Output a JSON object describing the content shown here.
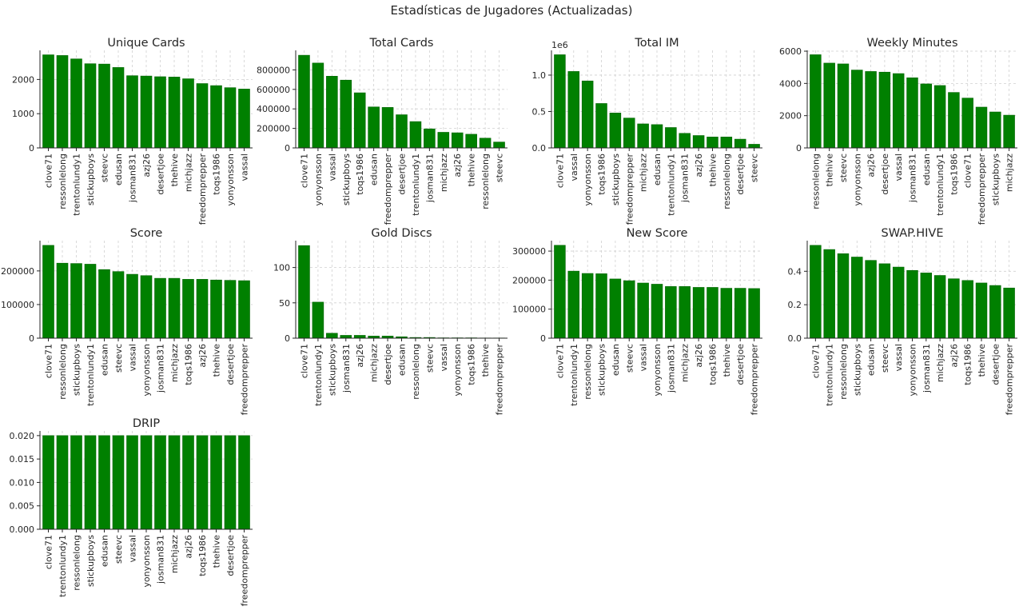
{
  "figure_title": "Estadísticas de Jugadores (Actualizadas)",
  "colors": {
    "bar": "#008000",
    "bar_edge": "#006400",
    "axis": "#262626",
    "grid": "#d0d0d0"
  },
  "chart_data": [
    {
      "type": "bar",
      "title": "Unique Cards",
      "categories": [
        "clove71",
        "ressonlelong",
        "trentonlundy1",
        "stickupboys",
        "steevc",
        "edusan",
        "josman831",
        "azj26",
        "desertjoe",
        "thehive",
        "michjazz",
        "freedomprepper",
        "toqs1986",
        "yonyonsson",
        "vassal"
      ],
      "values": [
        2720,
        2700,
        2600,
        2460,
        2450,
        2350,
        2110,
        2100,
        2080,
        2070,
        2020,
        1880,
        1820,
        1760,
        1720
      ],
      "ylim": [
        0,
        2850
      ],
      "yticks": [
        0,
        1000,
        2000
      ],
      "ytick_labels": [
        "0",
        "1000",
        "2000"
      ]
    },
    {
      "type": "bar",
      "title": "Total Cards",
      "categories": [
        "clove71",
        "yonyonsson",
        "vassal",
        "stickupboys",
        "toqs1986",
        "edusan",
        "freedomprepper",
        "desertjoe",
        "trentonlundy1",
        "josman831",
        "michjazz",
        "azj26",
        "thehive",
        "ressonlelong",
        "steevc"
      ],
      "values": [
        950000,
        870000,
        735000,
        695000,
        565000,
        420000,
        415000,
        340000,
        270000,
        195000,
        160000,
        155000,
        140000,
        100000,
        60000
      ],
      "ylim": [
        0,
        1000000
      ],
      "yticks": [
        0,
        200000,
        400000,
        600000,
        800000
      ],
      "ytick_labels": [
        "0",
        "200000",
        "400000",
        "600000",
        "800000"
      ]
    },
    {
      "type": "bar",
      "title": "Total IM",
      "offset_text": "1e6",
      "categories": [
        "clove71",
        "vassal",
        "yonyonsson",
        "toqs1986",
        "stickupboys",
        "freedomprepper",
        "michjazz",
        "edusan",
        "trentonlundy1",
        "josman831",
        "azj26",
        "thehive",
        "ressonlelong",
        "desertjoe",
        "steevc"
      ],
      "values": [
        1.28,
        1.05,
        0.92,
        0.61,
        0.48,
        0.41,
        0.33,
        0.32,
        0.28,
        0.2,
        0.17,
        0.15,
        0.15,
        0.12,
        0.05
      ],
      "ylim": [
        0,
        1.34
      ],
      "yticks": [
        0,
        0.5,
        1.0
      ],
      "ytick_labels": [
        "0.0",
        "0.5",
        "1.0"
      ]
    },
    {
      "type": "bar",
      "title": "Weekly Minutes",
      "categories": [
        "ressonlelong",
        "thehive",
        "steevc",
        "yonyonsson",
        "azj26",
        "desertjoe",
        "vassal",
        "josman831",
        "edusan",
        "trentonlundy1",
        "toqs1986",
        "clove71",
        "freedomprepper",
        "stickupboys",
        "michjazz"
      ],
      "values": [
        5780,
        5260,
        5210,
        4830,
        4740,
        4700,
        4610,
        4350,
        3970,
        3870,
        3440,
        3090,
        2530,
        2230,
        2030
      ],
      "ylim": [
        0,
        6050
      ],
      "yticks": [
        0,
        2000,
        4000,
        6000
      ],
      "ytick_labels": [
        "0",
        "2000",
        "4000",
        "6000"
      ]
    },
    {
      "type": "bar",
      "title": "Score",
      "categories": [
        "clove71",
        "ressonlelong",
        "stickupboys",
        "trentonlundy1",
        "edusan",
        "steevc",
        "vassal",
        "yonyonsson",
        "josman831",
        "michjazz",
        "toqs1986",
        "azj26",
        "thehive",
        "desertjoe",
        "freedomprepper"
      ],
      "values": [
        276000,
        223000,
        222000,
        220000,
        204000,
        198000,
        190000,
        186000,
        178000,
        178000,
        175000,
        175000,
        173000,
        172000,
        171000
      ],
      "ylim": [
        0,
        290000
      ],
      "yticks": [
        0,
        100000,
        200000
      ],
      "ytick_labels": [
        "0",
        "100000",
        "200000"
      ]
    },
    {
      "type": "bar",
      "title": "Gold Discs",
      "categories": [
        "clove71",
        "trentonlundy1",
        "stickupboys",
        "josman831",
        "azj26",
        "michjazz",
        "desertjoe",
        "edusan",
        "ressonlelong",
        "steevc",
        "vassal",
        "yonyonsson",
        "toqs1986",
        "thehive",
        "freedomprepper"
      ],
      "values": [
        131,
        51,
        7,
        4,
        4,
        3,
        3,
        2,
        1,
        1,
        0.5,
        0.5,
        0.5,
        0.3,
        0.3
      ],
      "ylim": [
        0,
        138
      ],
      "yticks": [
        0,
        50,
        100
      ],
      "ytick_labels": [
        "0",
        "50",
        "100"
      ]
    },
    {
      "type": "bar",
      "title": "New Score",
      "categories": [
        "clove71",
        "trentonlundy1",
        "ressonlelong",
        "stickupboys",
        "edusan",
        "steevc",
        "vassal",
        "yonyonsson",
        "josman831",
        "michjazz",
        "azj26",
        "toqs1986",
        "thehive",
        "desertjoe",
        "freedomprepper"
      ],
      "values": [
        320000,
        231000,
        223000,
        222000,
        204000,
        198000,
        190000,
        186000,
        178000,
        178000,
        175000,
        175000,
        172000,
        172000,
        171000
      ],
      "ylim": [
        0,
        336000
      ],
      "yticks": [
        0,
        100000,
        200000,
        300000
      ],
      "ytick_labels": [
        "0",
        "100000",
        "200000",
        "300000"
      ]
    },
    {
      "type": "bar",
      "title": "SWAP.HIVE",
      "categories": [
        "clove71",
        "trentonlundy1",
        "ressonlelong",
        "stickupboys",
        "edusan",
        "steevc",
        "vassal",
        "yonyonsson",
        "josman831",
        "michjazz",
        "azj26",
        "toqs1986",
        "thehive",
        "desertjoe",
        "freedomprepper"
      ],
      "values": [
        0.555,
        0.53,
        0.505,
        0.485,
        0.465,
        0.445,
        0.425,
        0.405,
        0.39,
        0.375,
        0.355,
        0.345,
        0.33,
        0.315,
        0.3
      ],
      "ylim": [
        0,
        0.583
      ],
      "yticks": [
        0,
        0.2,
        0.4
      ],
      "ytick_labels": [
        "0.0",
        "0.2",
        "0.4"
      ]
    },
    {
      "type": "bar",
      "title": "DRIP",
      "categories": [
        "clove71",
        "trentonlundy1",
        "ressonlelong",
        "stickupboys",
        "edusan",
        "steevc",
        "vassal",
        "yonyonsson",
        "josman831",
        "michjazz",
        "azj26",
        "toqs1986",
        "thehive",
        "desertjoe",
        "freedomprepper"
      ],
      "values": [
        0.02,
        0.02,
        0.02,
        0.02,
        0.02,
        0.02,
        0.02,
        0.02,
        0.02,
        0.02,
        0.02,
        0.02,
        0.02,
        0.02,
        0.02
      ],
      "ylim": [
        0,
        0.021
      ],
      "yticks": [
        0,
        0.005,
        0.01,
        0.015,
        0.02
      ],
      "ytick_labels": [
        "0.000",
        "0.005",
        "0.010",
        "0.015",
        "0.020"
      ]
    }
  ]
}
